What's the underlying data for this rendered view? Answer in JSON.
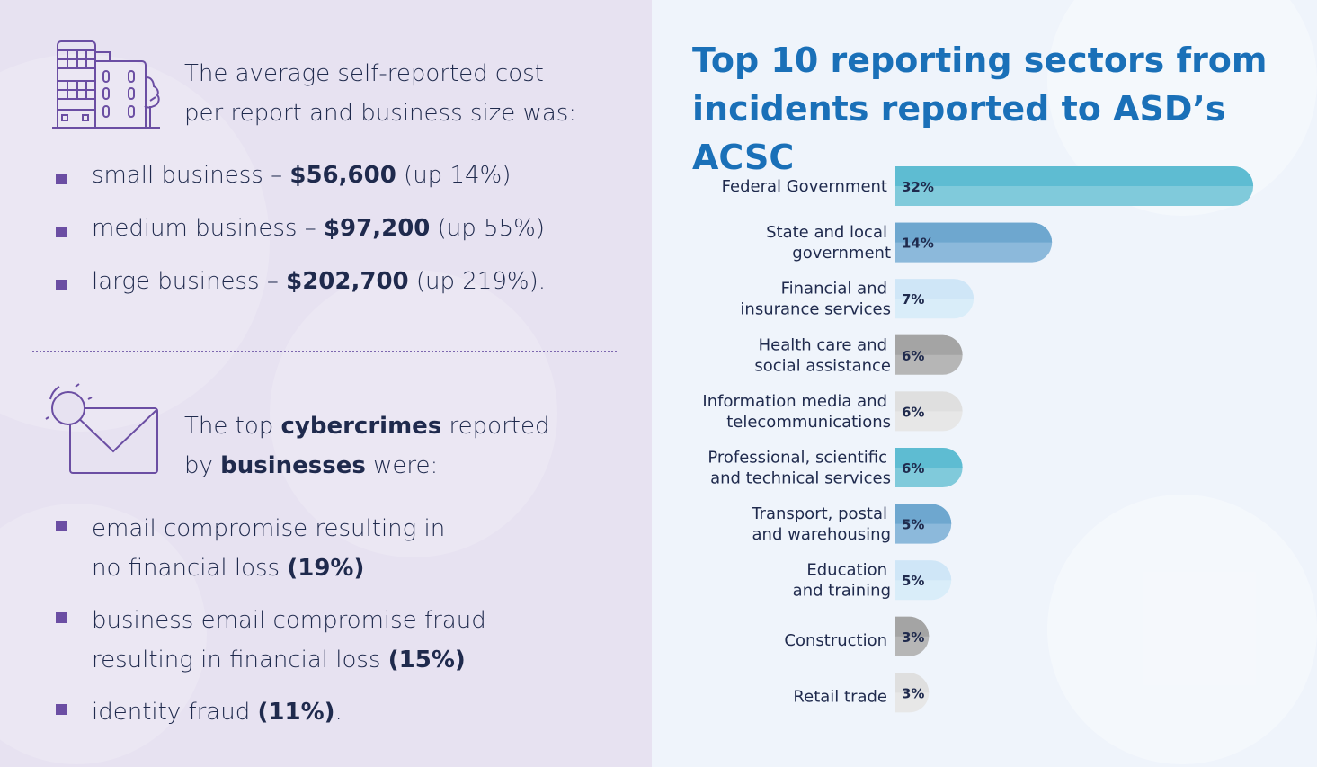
{
  "left": {
    "cost_intro": [
      "The average self-reported cost",
      "per report and business size was:"
    ],
    "cost_items": [
      {
        "label": "small business – ",
        "value": "$56,600",
        "change": " (up 14%)"
      },
      {
        "label": "medium business – ",
        "value": "$97,200",
        "change": "  (up 55%)"
      },
      {
        "label": "large business – ",
        "value": "$202,700",
        "change": " (up 219%)."
      }
    ],
    "crime_intro": {
      "p1": "The top ",
      "b1": "cybercrimes",
      "p2": " reported",
      "p3": "by ",
      "b2": "businesses",
      "p4": " were:"
    },
    "crime_items": [
      {
        "l1": "email compromise resulting in",
        "l2": "no financial loss ",
        "value": "(19%)",
        "end": ""
      },
      {
        "l1": "business email compromise fraud",
        "l2": "resulting in financial loss ",
        "value": "(15%)",
        "end": ""
      },
      {
        "l1": "identity fraud ",
        "l2": "",
        "value": "(11%)",
        "end": "."
      }
    ],
    "icons": [
      "building-icon",
      "email-magnifier-icon"
    ],
    "colors": {
      "bullet": "#6b4ea3",
      "background": "#e7e2f1"
    }
  },
  "chart_data": {
    "type": "bar",
    "orientation": "horizontal",
    "title": "Top 10 reporting sectors from incidents reported to ASD’s ACSC",
    "title_lines": [
      "Top 10 reporting sectors from",
      "incidents reported to ASD’s ACSC"
    ],
    "categories": [
      [
        "Federal Government"
      ],
      [
        "State and local",
        "government"
      ],
      [
        "Financial and",
        "insurance services"
      ],
      [
        "Health care and",
        "social assistance"
      ],
      [
        "Information media and",
        "telecommunications"
      ],
      [
        "Professional, scientific",
        "and technical services"
      ],
      [
        "Transport, postal",
        "and warehousing"
      ],
      [
        "Education",
        "and training"
      ],
      [
        "Construction"
      ],
      [
        "Retail trade"
      ]
    ],
    "values": [
      32,
      14,
      7,
      6,
      6,
      6,
      5,
      5,
      3,
      3
    ],
    "value_labels": [
      "32%",
      "14%",
      "7%",
      "6%",
      "6%",
      "6%",
      "5%",
      "5%",
      "3%",
      "3%"
    ],
    "unit": "%",
    "bar_colors": [
      [
        "#5ebcd2",
        "#80cadb"
      ],
      [
        "#6ea7cf",
        "#8cb9db"
      ],
      [
        "#cfe6f7",
        "#d9edf9"
      ],
      [
        "#a4a4a4",
        "#b6b6b6"
      ],
      [
        "#dfdfdf",
        "#e7e7e7"
      ],
      [
        "#5ebcd2",
        "#80cadb"
      ],
      [
        "#6ea7cf",
        "#8cb9db"
      ],
      [
        "#cfe6f7",
        "#d9edf9"
      ],
      [
        "#a4a4a4",
        "#b6b6b6"
      ],
      [
        "#dfdfdf",
        "#e7e7e7"
      ]
    ],
    "grid": false
  }
}
